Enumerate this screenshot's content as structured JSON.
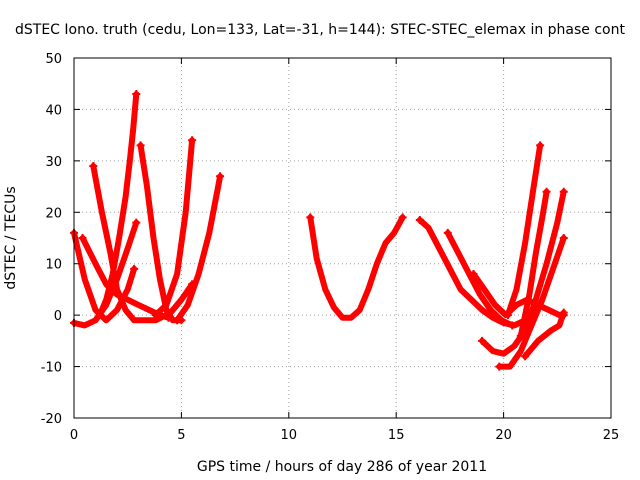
{
  "chart_data": {
    "type": "line",
    "title": "dSTEC Iono. truth (cedu, Lon=133, Lat=-31, h=144): STEC-STEC_elemax in phase cont",
    "xlabel": "GPS time / hours of day 286 of year 2011",
    "ylabel": "dSTEC  / TECUs",
    "xlim": [
      0,
      25
    ],
    "ylim": [
      -20,
      50
    ],
    "xticks": [
      0,
      5,
      10,
      15,
      20,
      25
    ],
    "yticks": [
      -20,
      -10,
      0,
      10,
      20,
      30,
      40,
      50
    ],
    "grid": true,
    "legend": "none",
    "color": "#ff0000",
    "series": [
      {
        "x": [
          0.0,
          0.5,
          1.0,
          1.5,
          2.0,
          2.5,
          2.8
        ],
        "y": [
          16,
          7,
          1,
          -1,
          1,
          5,
          9
        ]
      },
      {
        "x": [
          0.0,
          0.5,
          1.0,
          1.5,
          2.0,
          2.5,
          2.9
        ],
        "y": [
          -1.5,
          -2,
          -1,
          2,
          7,
          13,
          18
        ]
      },
      {
        "x": [
          0.4,
          1.0,
          1.5,
          2.0,
          2.5,
          3.0,
          3.5,
          4.0,
          4.4
        ],
        "y": [
          15,
          10,
          6,
          4,
          3,
          2,
          1,
          0,
          -0.5
        ]
      },
      {
        "x": [
          0.9,
          1.3,
          1.7,
          2.0,
          2.4,
          2.8,
          3.2,
          3.8,
          4.5,
          5.0,
          5.5
        ],
        "y": [
          29,
          20,
          12,
          5,
          1,
          -1,
          -1,
          -1,
          0.5,
          3,
          6
        ]
      },
      {
        "x": [
          1.2,
          1.5,
          1.8,
          2.1,
          2.4,
          2.6,
          2.75,
          2.9
        ],
        "y": [
          0,
          3,
          8,
          15,
          23,
          30,
          36,
          43
        ]
      },
      {
        "x": [
          3.1,
          3.4,
          3.7,
          4.0,
          4.3,
          4.6,
          5.0
        ],
        "y": [
          33,
          25,
          15,
          7,
          1,
          -1,
          -1
        ]
      },
      {
        "x": [
          3.8,
          4.3,
          4.8,
          5.2,
          5.5
        ],
        "y": [
          0,
          2,
          8,
          20,
          34
        ]
      },
      {
        "x": [
          4.8,
          5.3,
          5.8,
          6.3,
          6.8
        ],
        "y": [
          -1,
          2,
          8,
          16,
          27
        ]
      },
      {
        "x": [
          11.0,
          11.3,
          11.7,
          12.1,
          12.5,
          12.9,
          13.3,
          13.7,
          14.1,
          14.5,
          14.9,
          15.3
        ],
        "y": [
          19,
          11,
          5,
          1.5,
          -0.5,
          -0.5,
          1,
          5,
          10,
          14,
          16,
          19
        ]
      },
      {
        "x": [
          16.1,
          16.5,
          17.0,
          17.5,
          18.0,
          18.5,
          19.0,
          19.5,
          20.0,
          20.5,
          21.0
        ],
        "y": [
          18.5,
          17,
          13,
          9,
          5,
          3,
          1,
          -0.5,
          -1.5,
          -2,
          -1
        ]
      },
      {
        "x": [
          17.4,
          17.9,
          18.4,
          18.9,
          19.4,
          19.9,
          20.4
        ],
        "y": [
          16,
          12,
          8,
          4,
          1,
          -1,
          -2
        ]
      },
      {
        "x": [
          18.6,
          19.1,
          19.6,
          20.1,
          20.6,
          21.1,
          21.6,
          22.1,
          22.6,
          22.8
        ],
        "y": [
          8,
          5,
          2,
          0,
          2,
          3,
          2,
          1,
          0,
          0
        ]
      },
      {
        "x": [
          19.0,
          19.5,
          20.0,
          20.5,
          21.0,
          21.5,
          22.0,
          22.5,
          22.8
        ],
        "y": [
          -5,
          -7,
          -7.5,
          -6,
          -3,
          3,
          10,
          18,
          24
        ]
      },
      {
        "x": [
          19.8,
          20.3,
          20.8,
          21.3,
          21.8,
          22.3,
          22.8
        ],
        "y": [
          -10,
          -10,
          -7,
          -2,
          3,
          9,
          15
        ]
      },
      {
        "x": [
          20.2,
          20.6,
          21.0,
          21.4,
          21.7
        ],
        "y": [
          0,
          5,
          14,
          25,
          33
        ]
      },
      {
        "x": [
          20.8,
          21.2,
          21.5,
          21.8,
          22.0
        ],
        "y": [
          -4,
          4,
          12,
          19,
          24
        ]
      },
      {
        "x": [
          21.0,
          21.6,
          22.2,
          22.6,
          22.8
        ],
        "y": [
          -8,
          -5,
          -3,
          -2,
          0.5
        ]
      }
    ]
  }
}
